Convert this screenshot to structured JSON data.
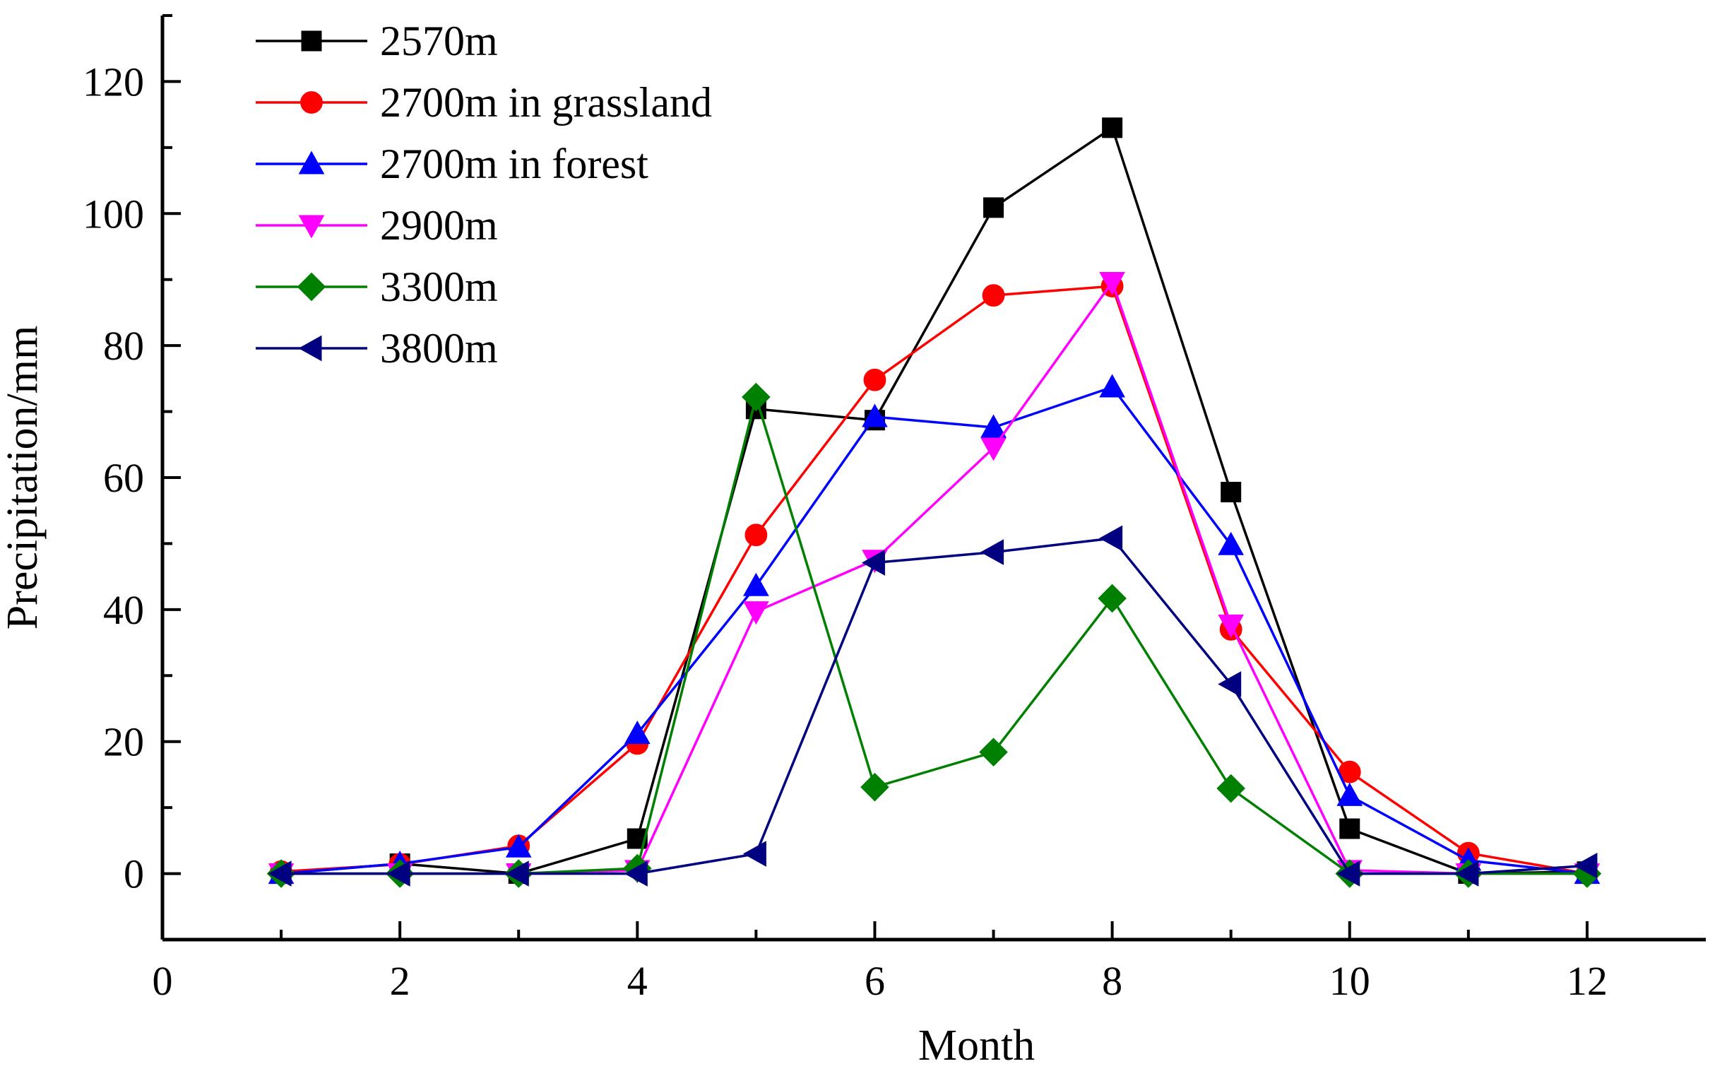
{
  "chart_data": {
    "type": "line",
    "title": "",
    "xlabel": "Month",
    "ylabel": "Precipitation/mm",
    "xlim": [
      0,
      13
    ],
    "ylim": [
      -10,
      130
    ],
    "xticks": [
      0,
      2,
      4,
      6,
      8,
      10,
      12
    ],
    "xtick_labels": [
      "0",
      "2",
      "4",
      "6",
      "8",
      "10",
      "12"
    ],
    "yticks": [
      0,
      20,
      40,
      60,
      80,
      100,
      120
    ],
    "ytick_labels": [
      "0",
      "20",
      "40",
      "60",
      "80",
      "100",
      "120"
    ],
    "grid": false,
    "legend_position": "top-left",
    "x": [
      1,
      2,
      3,
      4,
      5,
      6,
      7,
      8,
      9,
      10,
      11,
      12
    ],
    "series": [
      {
        "name": "2570m",
        "color": "#000000",
        "marker": "square",
        "values": [
          0,
          1.5,
          0,
          5.3,
          70.4,
          68.7,
          100.9,
          113,
          57.8,
          6.8,
          0,
          0.3
        ]
      },
      {
        "name": "2700m in grassland",
        "color": "#ff0000",
        "marker": "circle",
        "values": [
          0.3,
          1.4,
          4.2,
          19.7,
          51.3,
          74.8,
          87.6,
          89,
          37,
          15.4,
          3.1,
          0
        ]
      },
      {
        "name": "2700m in forest",
        "color": "#0000ff",
        "marker": "triangle-up",
        "values": [
          0,
          1.5,
          4,
          21.2,
          43.6,
          69.2,
          67.6,
          73.7,
          49.8,
          11.8,
          2,
          0
        ]
      },
      {
        "name": "2900m",
        "color": "#ff00ff",
        "marker": "triangle-down",
        "values": [
          0,
          0,
          0,
          0.5,
          39.7,
          47.5,
          64.5,
          89.6,
          37.7,
          0.5,
          0,
          0
        ]
      },
      {
        "name": "3300m",
        "color": "#008000",
        "marker": "diamond",
        "values": [
          0,
          0,
          0,
          0.8,
          72.2,
          13.1,
          18.4,
          41.7,
          12.9,
          0,
          0,
          0
        ]
      },
      {
        "name": "3800m",
        "color": "#000080",
        "marker": "triangle-left",
        "values": [
          0,
          0,
          0,
          0,
          3,
          47.1,
          48.7,
          50.8,
          28.7,
          0,
          0,
          1.2
        ]
      }
    ]
  }
}
